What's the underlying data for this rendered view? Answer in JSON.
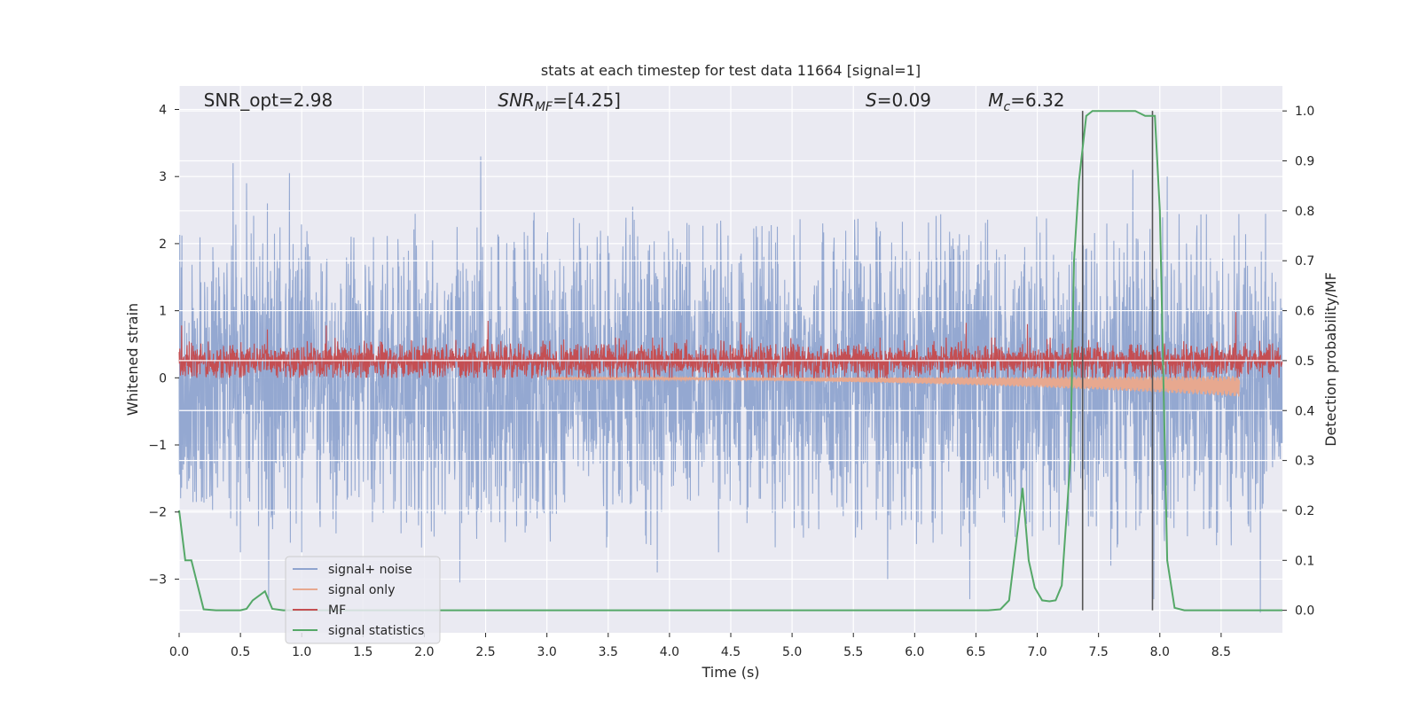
{
  "chart_data": {
    "type": "line",
    "title": "stats at each timestep for test data 11664 [signal=1]",
    "xlabel": "Time (s)",
    "ylabel_left": "Whitened strain",
    "ylabel_right": "Detection probability/MF",
    "xlim": [
      0,
      9
    ],
    "ylim_left": [
      -3.8,
      4.35
    ],
    "ylim_right": [
      -0.045,
      1.05
    ],
    "xticks": [
      0.0,
      0.5,
      1.0,
      1.5,
      2.0,
      2.5,
      3.0,
      3.5,
      4.0,
      4.5,
      5.0,
      5.5,
      6.0,
      6.5,
      7.0,
      7.5,
      8.0,
      8.5
    ],
    "xtick_labels": [
      "0.0",
      "0.5",
      "1.0",
      "1.5",
      "2.0",
      "2.5",
      "3.0",
      "3.5",
      "4.0",
      "4.5",
      "5.0",
      "5.5",
      "6.0",
      "6.5",
      "7.0",
      "7.5",
      "8.0",
      "8.5"
    ],
    "yticks_left": [
      -3,
      -2,
      -1,
      0,
      1,
      2,
      3,
      4
    ],
    "ytick_labels_left": [
      "−3",
      "−2",
      "−1",
      "0",
      "1",
      "2",
      "3",
      "4"
    ],
    "yticks_right": [
      0.0,
      0.1,
      0.2,
      0.3,
      0.4,
      0.5,
      0.6,
      0.7,
      0.8,
      0.9,
      1.0
    ],
    "ytick_labels_right": [
      "0.0",
      "0.1",
      "0.2",
      "0.3",
      "0.4",
      "0.5",
      "0.6",
      "0.7",
      "0.8",
      "0.9",
      "1.0"
    ],
    "grid": true,
    "legend_position": "lower-left",
    "annotations": [
      {
        "text": "SNR_opt=2.98",
        "x": 0.2,
        "y": 4.1
      },
      {
        "text": "SNR",
        "sub": "MF",
        "tail": "=[4.25]",
        "italic": true,
        "x": 2.6,
        "y": 4.1
      },
      {
        "text": "S",
        "tail": "=0.09",
        "italic": true,
        "x": 5.6,
        "y": 4.1
      },
      {
        "text": "M",
        "sub": "c",
        "tail": "=6.32",
        "italic": true,
        "x": 6.6,
        "y": 4.1
      }
    ],
    "vertical_lines": [
      {
        "x": 7.37,
        "y_range_right": [
          0.0,
          1.0
        ]
      },
      {
        "x": 7.94,
        "y_range_right": [
          0.0,
          1.0
        ]
      }
    ],
    "series": [
      {
        "name": "signal+ noise",
        "axis": "left",
        "color": "#8fa4cf",
        "kind": "noise",
        "sample_rate_hz": 400,
        "envelope_up": [
          [
            0.0,
            2.1
          ],
          [
            0.5,
            2.2
          ],
          [
            1.0,
            2.2
          ],
          [
            2.0,
            2.3
          ],
          [
            3.0,
            2.3
          ],
          [
            4.0,
            2.1
          ],
          [
            5.0,
            2.2
          ],
          [
            6.0,
            2.3
          ],
          [
            7.0,
            2.2
          ],
          [
            8.0,
            2.3
          ],
          [
            8.95,
            2.3
          ]
        ],
        "envelope_down": [
          [
            0.0,
            -2.0
          ],
          [
            1.0,
            -2.3
          ],
          [
            2.0,
            -2.3
          ],
          [
            3.0,
            -2.3
          ],
          [
            4.0,
            -2.3
          ],
          [
            5.0,
            -2.3
          ],
          [
            6.0,
            -2.3
          ],
          [
            7.0,
            -2.3
          ],
          [
            8.0,
            -2.3
          ],
          [
            8.95,
            -2.3
          ]
        ],
        "spikes": [
          [
            0.44,
            3.2
          ],
          [
            0.55,
            2.9
          ],
          [
            0.72,
            2.6
          ],
          [
            0.9,
            3.05
          ],
          [
            2.46,
            3.3
          ],
          [
            3.7,
            2.55
          ],
          [
            7.6,
            3.15
          ],
          [
            7.78,
            3.1
          ],
          [
            8.06,
            3.0
          ],
          [
            0.5,
            -2.6
          ],
          [
            0.73,
            -3.3
          ],
          [
            1.0,
            -2.6
          ],
          [
            2.29,
            -3.05
          ],
          [
            3.9,
            -2.9
          ],
          [
            4.4,
            -2.6
          ],
          [
            5.78,
            -3.0
          ],
          [
            6.45,
            -3.3
          ],
          [
            7.6,
            -2.8
          ],
          [
            7.95,
            -3.3
          ],
          [
            8.82,
            -3.5
          ]
        ]
      },
      {
        "name": "signal only",
        "axis": "left",
        "color": "#e7a88f",
        "kind": "chirp",
        "start": 3.0,
        "end": 8.65,
        "start_amp": 0.02,
        "end_amp": 0.28
      },
      {
        "name": "MF",
        "axis": "left",
        "color": "#c44e52",
        "kind": "band",
        "center": 0.25,
        "band": [
          0.0,
          0.6
        ],
        "peaks": [
          [
            0.02,
            0.78
          ],
          [
            0.72,
            0.72
          ],
          [
            1.2,
            0.78
          ],
          [
            2.52,
            0.85
          ],
          [
            4.58,
            0.82
          ],
          [
            6.42,
            0.82
          ],
          [
            6.92,
            0.8
          ],
          [
            8.62,
            0.98
          ]
        ]
      },
      {
        "name": "signal statistics",
        "axis": "right",
        "color": "#55a868",
        "kind": "line",
        "points": [
          [
            0.0,
            0.2
          ],
          [
            0.05,
            0.1
          ],
          [
            0.1,
            0.1
          ],
          [
            0.2,
            0.002
          ],
          [
            0.3,
            0.0
          ],
          [
            0.5,
            0.0
          ],
          [
            0.55,
            0.003
          ],
          [
            0.6,
            0.02
          ],
          [
            0.7,
            0.038
          ],
          [
            0.76,
            0.003
          ],
          [
            0.85,
            0.0
          ],
          [
            6.6,
            0.0
          ],
          [
            6.7,
            0.002
          ],
          [
            6.77,
            0.02
          ],
          [
            6.85,
            0.18
          ],
          [
            6.88,
            0.245
          ],
          [
            6.93,
            0.1
          ],
          [
            6.98,
            0.045
          ],
          [
            7.04,
            0.02
          ],
          [
            7.1,
            0.018
          ],
          [
            7.15,
            0.02
          ],
          [
            7.2,
            0.05
          ],
          [
            7.27,
            0.3
          ],
          [
            7.3,
            0.7
          ],
          [
            7.34,
            0.86
          ],
          [
            7.4,
            0.99
          ],
          [
            7.45,
            1.0
          ],
          [
            7.8,
            1.0
          ],
          [
            7.88,
            0.99
          ],
          [
            7.96,
            0.99
          ],
          [
            8.0,
            0.8
          ],
          [
            8.06,
            0.1
          ],
          [
            8.12,
            0.005
          ],
          [
            8.2,
            0.0
          ],
          [
            9.0,
            0.0
          ]
        ]
      }
    ]
  }
}
